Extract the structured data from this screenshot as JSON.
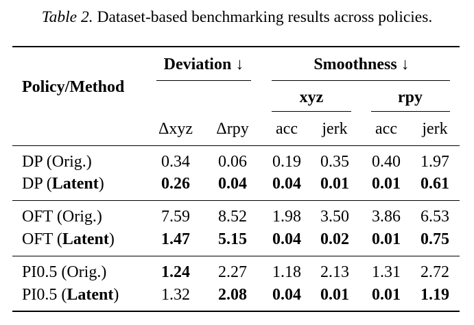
{
  "caption": {
    "label": "Table 2.",
    "text": "Dataset-based benchmarking results across policies."
  },
  "header": {
    "policy": "Policy/Method",
    "deviation": "Deviation ↓",
    "smoothness": "Smoothness ↓",
    "xyz": "xyz",
    "rpy": "rpy",
    "cols": [
      "Δxyz",
      "Δrpy",
      "acc",
      "jerk",
      "acc",
      "jerk"
    ]
  },
  "groups": [
    {
      "rows": [
        {
          "name": "DP (",
          "tag": "Orig.",
          "close": ")",
          "tag_bold": false,
          "values": [
            "0.34",
            "0.06",
            "0.19",
            "0.35",
            "0.40",
            "1.97"
          ],
          "bold": [
            false,
            false,
            false,
            false,
            false,
            false
          ]
        },
        {
          "name": "DP (",
          "tag": "Latent",
          "close": ")",
          "tag_bold": true,
          "values": [
            "0.26",
            "0.04",
            "0.04",
            "0.01",
            "0.01",
            "0.61"
          ],
          "bold": [
            true,
            true,
            true,
            true,
            true,
            true
          ]
        }
      ]
    },
    {
      "rows": [
        {
          "name": "OFT (",
          "tag": "Orig.",
          "close": ")",
          "tag_bold": false,
          "values": [
            "7.59",
            "8.52",
            "1.98",
            "3.50",
            "3.86",
            "6.53"
          ],
          "bold": [
            false,
            false,
            false,
            false,
            false,
            false
          ]
        },
        {
          "name": "OFT (",
          "tag": "Latent",
          "close": ")",
          "tag_bold": true,
          "values": [
            "1.47",
            "5.15",
            "0.04",
            "0.02",
            "0.01",
            "0.75"
          ],
          "bold": [
            true,
            true,
            true,
            true,
            true,
            true
          ]
        }
      ]
    },
    {
      "rows": [
        {
          "name": "PI0.5 (",
          "tag": "Orig.",
          "close": ")",
          "tag_bold": false,
          "values": [
            "1.24",
            "2.27",
            "1.18",
            "2.13",
            "1.31",
            "2.72"
          ],
          "bold": [
            true,
            false,
            false,
            false,
            false,
            false
          ]
        },
        {
          "name": "PI0.5 (",
          "tag": "Latent",
          "close": ")",
          "tag_bold": true,
          "values": [
            "1.32",
            "2.08",
            "0.04",
            "0.01",
            "0.01",
            "1.19"
          ],
          "bold": [
            false,
            true,
            true,
            true,
            true,
            true
          ]
        }
      ]
    }
  ]
}
